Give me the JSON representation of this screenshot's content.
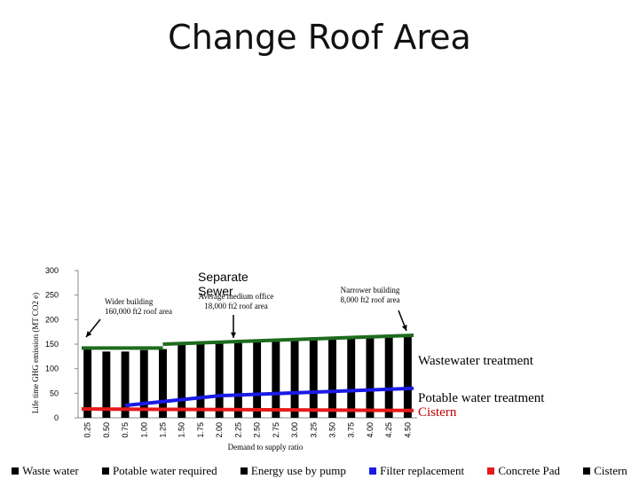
{
  "slide": {
    "title": "Change Roof Area"
  },
  "chart_data": {
    "type": "bar",
    "ylabel": "Life time GHG emission (MT CO2 e)",
    "xlabel": "Demand to supply ratio",
    "ylim": [
      0,
      300
    ],
    "yticks": [
      0,
      50,
      100,
      150,
      200,
      250,
      300
    ],
    "categories": [
      "0.25",
      "0.50",
      "0.75",
      "1.00",
      "1.25",
      "1.50",
      "1.75",
      "2.00",
      "2.25",
      "2.50",
      "2.75",
      "3.00",
      "3.25",
      "3.50",
      "3.75",
      "4.00",
      "4.25",
      "4.50"
    ],
    "series": [
      {
        "name": "Waste water",
        "color": "#000000",
        "values": [
          0,
          0,
          0,
          0,
          0,
          0,
          0,
          0,
          0,
          0,
          0,
          0,
          0,
          0,
          0,
          0,
          0,
          0
        ]
      },
      {
        "name": "Potable water required",
        "color": "#000000",
        "values": [
          0,
          0,
          0,
          0,
          0,
          0,
          0,
          0,
          0,
          0,
          0,
          0,
          0,
          0,
          0,
          0,
          0,
          0
        ]
      },
      {
        "name": "Energy use by pump",
        "color": "#000000",
        "values": [
          0,
          0,
          0,
          0,
          0,
          0,
          0,
          0,
          0,
          0,
          0,
          0,
          0,
          0,
          0,
          0,
          0,
          0
        ]
      },
      {
        "name": "Filter replacement",
        "color": "#000000",
        "values": [
          0,
          0,
          0,
          0,
          0,
          0,
          0,
          0,
          0,
          0,
          0,
          0,
          0,
          0,
          0,
          0,
          0,
          0
        ]
      },
      {
        "name": "Concrete Pad",
        "color": "#000000",
        "values": [
          0,
          0,
          0,
          0,
          0,
          0,
          0,
          0,
          0,
          0,
          0,
          0,
          0,
          0,
          0,
          0,
          0,
          0
        ]
      },
      {
        "name": "Cistern",
        "color": "#000000",
        "values": [
          140,
          135,
          135,
          138,
          140,
          150,
          152,
          155,
          155,
          157,
          158,
          160,
          160,
          162,
          163,
          164,
          165,
          167
        ]
      }
    ],
    "overlay_lines": [
      {
        "label": "Wastewater treatment",
        "color": "#1e6b1e",
        "segments": [
          [
            [
              0.25,
              142
            ],
            [
              1.25,
              142
            ]
          ],
          [
            [
              1.25,
              150
            ],
            [
              4.5,
              168
            ]
          ]
        ]
      },
      {
        "label": "Potable water treatment",
        "color": "#1a1ae6",
        "segments": [
          [
            [
              0.75,
              25
            ],
            [
              2.0,
              45
            ]
          ],
          [
            [
              2.0,
              45
            ],
            [
              4.5,
              60
            ]
          ]
        ]
      },
      {
        "label": "Cistern",
        "color": "#e61a1a",
        "segments": [
          [
            [
              0.25,
              18
            ],
            [
              4.5,
              15
            ]
          ]
        ]
      }
    ],
    "annotations": [
      {
        "id": "wider",
        "text": [
          "Wider building",
          "160,000 ft2 roof area"
        ],
        "x": 0.25
      },
      {
        "id": "average",
        "text": [
          "Average medium office",
          "18,000 ft2 roof area"
        ],
        "x": 2.25
      },
      {
        "id": "narrower",
        "text": [
          "Narrower building",
          "8,000 ft2 roof area"
        ],
        "x": 4.5
      }
    ],
    "separate_label": [
      "Separate",
      "Sewer"
    ],
    "legend_position": "bottom",
    "grid": false
  }
}
